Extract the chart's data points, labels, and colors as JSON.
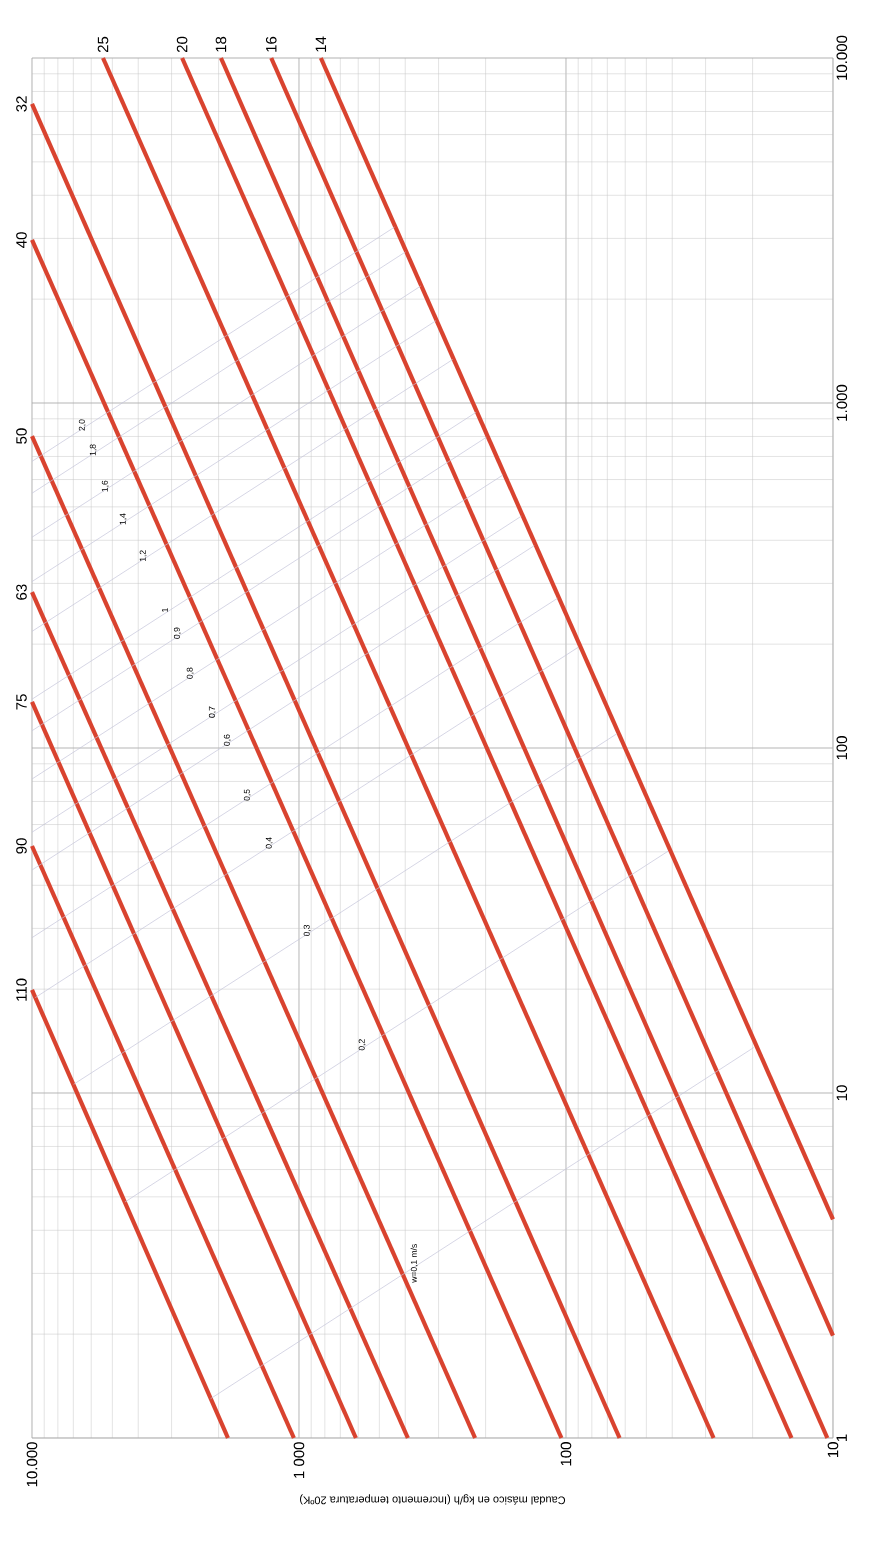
{
  "chart_data": {
    "type": "line",
    "xlabel": "Caudal másico en kg/h (Incremento temperatura 20ºK)",
    "log": "xy",
    "grid": true,
    "legend": false,
    "marker": "none",
    "line_style": "solid",
    "xlim": [
      10000,
      10
    ],
    "ylim": [
      1,
      10000
    ],
    "xticks": [
      {
        "value": 10,
        "label": "10"
      },
      {
        "value": 100,
        "label": "100"
      },
      {
        "value": 1000,
        "label": "1 000"
      },
      {
        "value": 10000,
        "label": "10.000"
      }
    ],
    "yticks": [
      {
        "value": 1,
        "label": "1"
      },
      {
        "value": 10,
        "label": "10"
      },
      {
        "value": 100,
        "label": "100"
      },
      {
        "value": 1000,
        "label": "1.000"
      },
      {
        "value": 10000,
        "label": "10.000"
      }
    ],
    "series": [
      {
        "name": "110",
        "color": "#d9432f",
        "x": [
          1845,
          10000
        ],
        "values": [
          1,
          19.9
        ]
      },
      {
        "name": "90",
        "color": "#d9432f",
        "x": [
          1045,
          10000
        ],
        "values": [
          1,
          52
        ]
      },
      {
        "name": "75",
        "color": "#d9432f",
        "x": [
          612,
          10000
        ],
        "values": [
          1,
          136
        ]
      },
      {
        "name": "63",
        "color": "#d9432f",
        "x": [
          391,
          10000
        ],
        "values": [
          1,
          283
        ]
      },
      {
        "name": "50",
        "color": "#d9432f",
        "x": [
          219,
          10000
        ],
        "values": [
          1,
          802
        ]
      },
      {
        "name": "40",
        "color": "#d9432f",
        "x": [
          104,
          10000
        ],
        "values": [
          1,
          2970
        ]
      },
      {
        "name": "32",
        "color": "#d9432f",
        "x": [
          63,
          10000
        ],
        "values": [
          1,
          7360
        ]
      },
      {
        "name": "25",
        "color": "#d9432f",
        "x": [
          28,
          5420
        ],
        "values": [
          1,
          10000
        ]
      },
      {
        "name": "20",
        "color": "#d9432f",
        "x": [
          14.3,
          2740
        ],
        "values": [
          1,
          10000
        ]
      },
      {
        "name": "18",
        "color": "#d9432f",
        "x": [
          10.5,
          1960
        ],
        "values": [
          1,
          10000
        ]
      },
      {
        "name": "16",
        "color": "#d9432f",
        "x": [
          10,
          1270
        ],
        "values": [
          1.98,
          10000
        ]
      },
      {
        "name": "14",
        "color": "#d9432f",
        "x": [
          10,
          828
        ],
        "values": [
          4.3,
          10000
        ]
      },
      {
        "name": "w=0,1 m/s",
        "color": "#c4c4da",
        "x": [
          2143,
          352,
          19.8
        ],
        "values": [
          1.3,
          3.21,
          13.55
        ]
      },
      {
        "name": "0,2",
        "color": "#c4c4da",
        "x": [
          4487,
          552,
          41.5
        ],
        "values": [
          4.83,
          13.8,
          50.2
        ]
      },
      {
        "name": "0,3",
        "color": "#c4c4da",
        "x": [
          6982,
          887,
          64.6
        ],
        "values": [
          10.6,
          29.6,
          109.9
        ]
      },
      {
        "name": "0,4",
        "color": "#c4c4da",
        "x": [
          9727,
          1230,
          89.9
        ],
        "values": [
          18.9,
          53.1,
          196
        ]
      },
      {
        "name": "0,5",
        "color": "#c4c4da",
        "x": [
          10000,
          1486,
          107.6
        ],
        "values": [
          28.2,
          73.1,
          271.6
        ]
      },
      {
        "name": "0,6",
        "color": "#c4c4da",
        "x": [
          10000,
          1766,
          131.5
        ],
        "values": [
          44.3,
          105.4,
          386
        ]
      },
      {
        "name": "0,7",
        "color": "#c4c4da",
        "x": [
          10000,
          2009,
          146.9
        ],
        "values": [
          57,
          127.1,
          470
        ]
      },
      {
        "name": "0,8",
        "color": "#c4c4da",
        "x": [
          10000,
          2432,
          172
        ],
        "values": [
          81.3,
          164.8,
          619
        ]
      },
      {
        "name": "0,9",
        "color": "#c4c4da",
        "x": [
          10000,
          2716,
          198.6
        ],
        "values": [
          112.2,
          215.3,
          796
        ]
      },
      {
        "name": "1",
        "color": "#c4c4da",
        "x": [
          10000,
          3041,
          217
        ],
        "values": [
          138.5,
          251,
          940
        ]
      },
      {
        "name": "1,2",
        "color": "#c4c4da",
        "x": [
          10000,
          3648,
          265.5
        ],
        "values": [
          217.8,
          360.6,
          1337
        ]
      },
      {
        "name": "1,4",
        "color": "#c4c4da",
        "x": [
          10000,
          4335,
          306.9
        ],
        "values": [
          303.7,
          461,
          1732
        ]
      },
      {
        "name": "1,6",
        "color": "#c4c4da",
        "x": [
          10000,
          5058,
          350
        ],
        "values": [
          408.3,
          574,
          2183
        ]
      },
      {
        "name": "1,8",
        "color": "#c4c4da",
        "x": [
          10000,
          5610,
          399
        ],
        "values": [
          547.5,
          731,
          2742
        ]
      },
      {
        "name": "2,0",
        "color": "#c4c4da",
        "x": [
          10000,
          6166,
          438.5
        ],
        "values": [
          677.5,
          863,
          3236
        ]
      }
    ]
  }
}
